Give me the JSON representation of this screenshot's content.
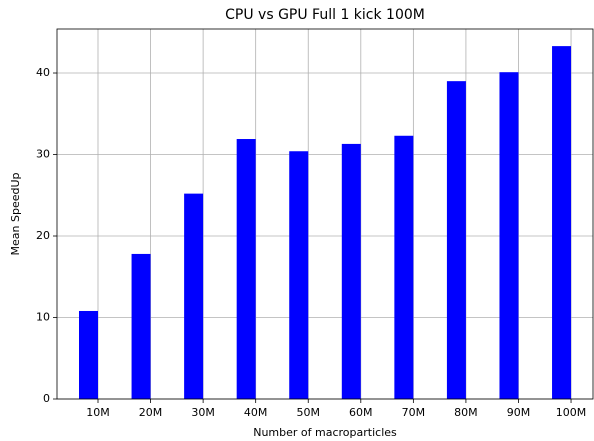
{
  "chart_data": {
    "type": "bar",
    "title": "CPU vs GPU Full 1 kick 100M",
    "xlabel": "Number of macroparticles",
    "ylabel": "Mean SpeedUp",
    "categories": [
      "10M",
      "20M",
      "30M",
      "40M",
      "50M",
      "60M",
      "70M",
      "80M",
      "90M",
      "100M"
    ],
    "values": [
      10.8,
      17.8,
      25.2,
      31.9,
      30.4,
      31.3,
      32.3,
      39.0,
      40.1,
      43.3
    ],
    "color": "#0000ff",
    "ylim": [
      0,
      45.4
    ],
    "yticks": [
      0,
      10,
      20,
      30,
      40
    ],
    "grid": true
  }
}
